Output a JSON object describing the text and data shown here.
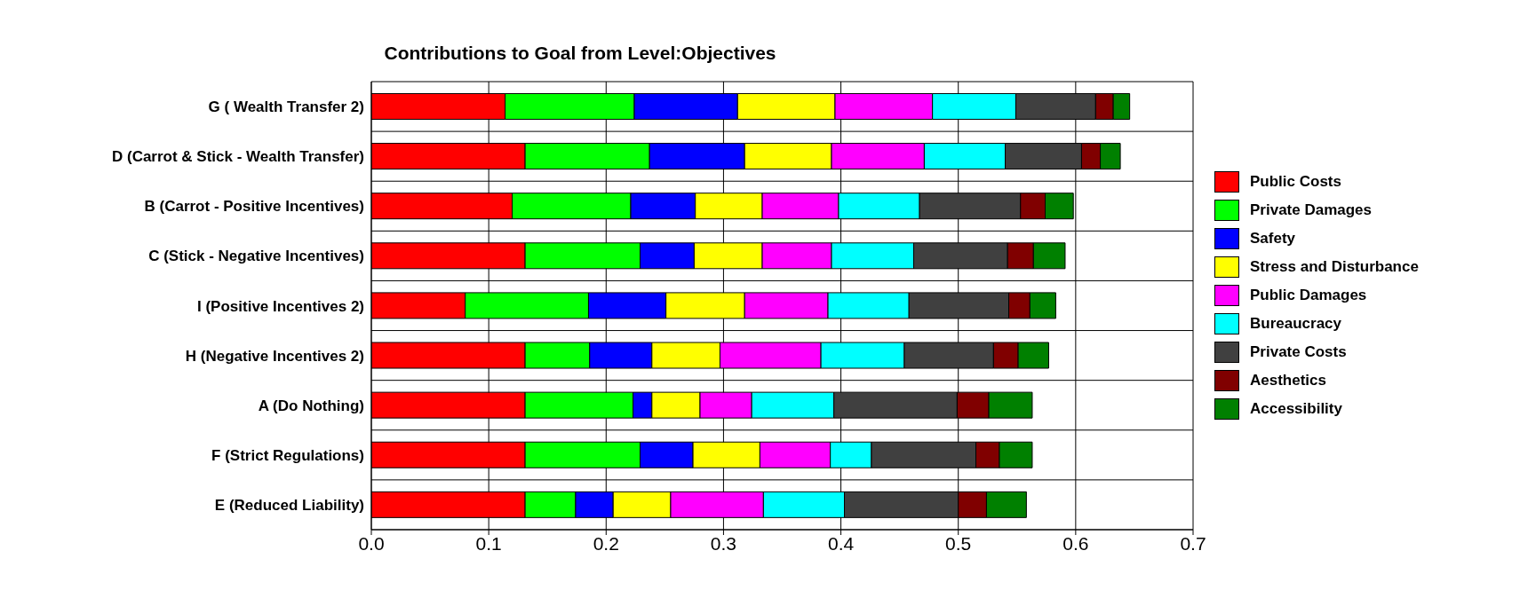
{
  "chart_data": {
    "type": "bar",
    "orientation": "horizontal",
    "stacked": true,
    "title": "Contributions to Goal from Level:Objectives",
    "categories": [
      "G ( Wealth Transfer 2)",
      "D (Carrot & Stick - Wealth Transfer)",
      "B (Carrot - Positive Incentives)",
      "C (Stick - Negative Incentives)",
      "I (Positive Incentives 2)",
      "H (Negative Incentives 2)",
      "A (Do Nothing)",
      "F (Strict Regulations)",
      "E (Reduced Liability)"
    ],
    "series": [
      {
        "name": "Public Costs",
        "color": "#ff0000",
        "values": [
          0.114,
          0.131,
          0.12,
          0.131,
          0.08,
          0.131,
          0.131,
          0.131,
          0.131
        ]
      },
      {
        "name": "Private Damages",
        "color": "#00ff00",
        "values": [
          0.11,
          0.106,
          0.101,
          0.098,
          0.105,
          0.055,
          0.092,
          0.098,
          0.043
        ]
      },
      {
        "name": "Safety",
        "color": "#0000ff",
        "values": [
          0.088,
          0.081,
          0.055,
          0.046,
          0.066,
          0.053,
          0.016,
          0.045,
          0.032
        ]
      },
      {
        "name": "Stress and Disturbance",
        "color": "#ffff00",
        "values": [
          0.083,
          0.074,
          0.057,
          0.058,
          0.067,
          0.058,
          0.041,
          0.057,
          0.049
        ]
      },
      {
        "name": "Public Damages",
        "color": "#ff00ff",
        "values": [
          0.083,
          0.079,
          0.065,
          0.059,
          0.071,
          0.086,
          0.044,
          0.06,
          0.079
        ]
      },
      {
        "name": "Bureaucracy",
        "color": "#00ffff",
        "values": [
          0.071,
          0.069,
          0.069,
          0.07,
          0.069,
          0.071,
          0.07,
          0.035,
          0.069
        ]
      },
      {
        "name": "Private Costs",
        "color": "#404040",
        "values": [
          0.068,
          0.065,
          0.086,
          0.08,
          0.085,
          0.076,
          0.105,
          0.089,
          0.097
        ]
      },
      {
        "name": "Aesthetics",
        "color": "#800000",
        "values": [
          0.015,
          0.016,
          0.021,
          0.022,
          0.018,
          0.021,
          0.027,
          0.02,
          0.024
        ]
      },
      {
        "name": "Accessibility",
        "color": "#008000",
        "values": [
          0.014,
          0.017,
          0.024,
          0.027,
          0.022,
          0.026,
          0.037,
          0.028,
          0.034
        ]
      }
    ],
    "xlim": [
      0,
      0.7
    ],
    "xticks": [
      {
        "value": 0,
        "label": "0.0"
      },
      0.1,
      0.2,
      0.3,
      0.4,
      0.5,
      0.6,
      0.7
    ],
    "grid": true,
    "legend": "right"
  }
}
